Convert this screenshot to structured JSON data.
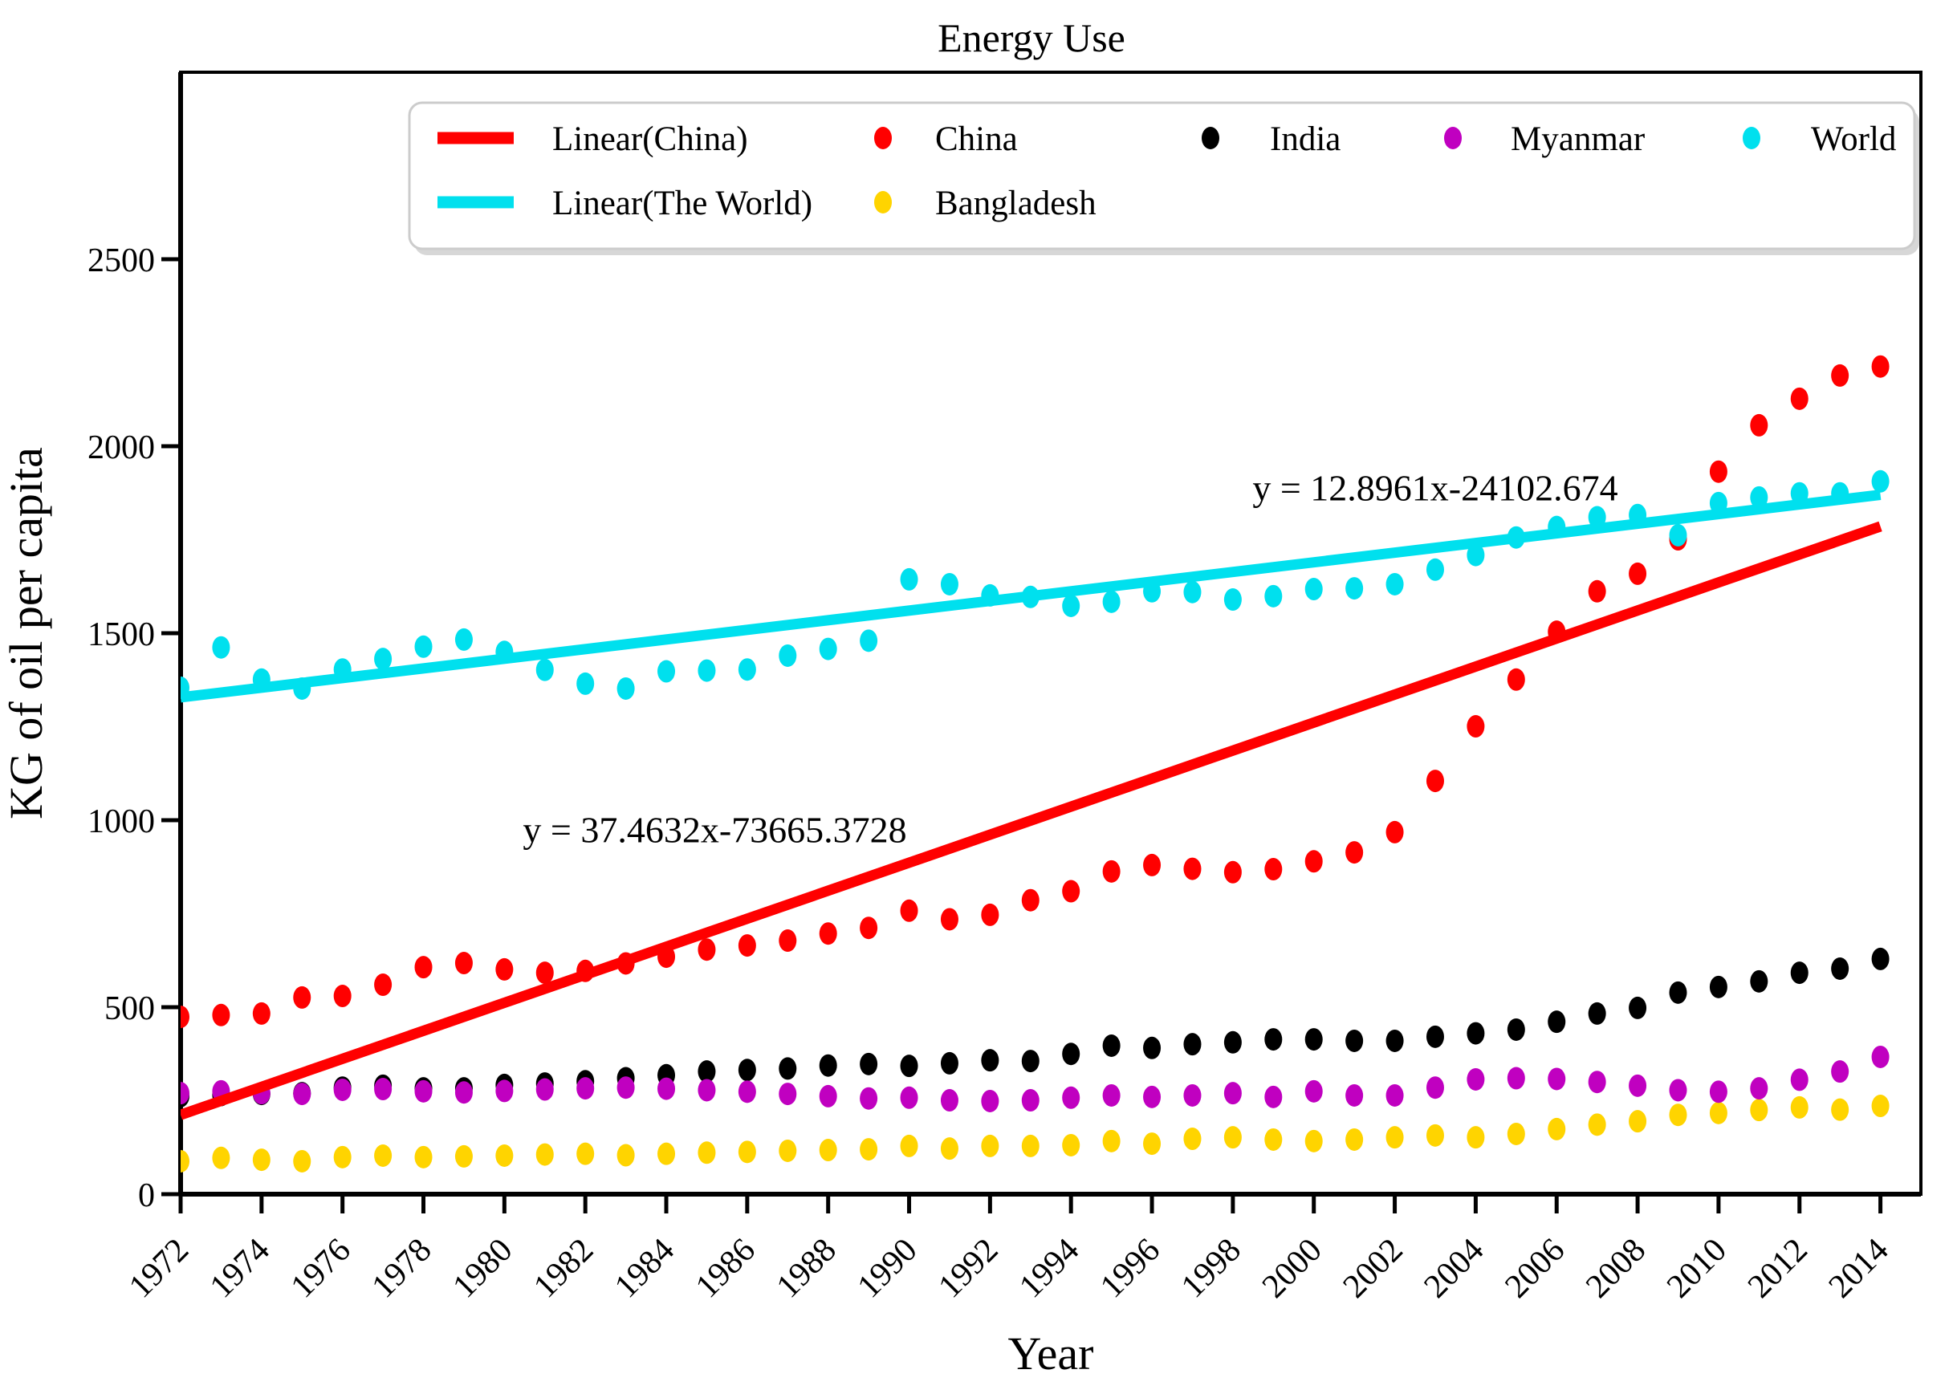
{
  "chart_data": {
    "type": "scatter",
    "title": "Energy Use",
    "xlabel": "Year",
    "ylabel": "KG of oil per capita",
    "xlim": [
      1972,
      2015
    ],
    "ylim": [
      0,
      3000
    ],
    "grid": false,
    "legend_position": "upper center",
    "xticks": [
      1972,
      1974,
      1976,
      1978,
      1980,
      1982,
      1984,
      1986,
      1988,
      1990,
      1992,
      1994,
      1996,
      1998,
      2000,
      2002,
      2004,
      2006,
      2008,
      2010,
      2012,
      2014
    ],
    "yticks": [
      0,
      500,
      1000,
      1500,
      2000,
      2500
    ],
    "years": [
      1972,
      1973,
      1974,
      1975,
      1976,
      1977,
      1978,
      1979,
      1980,
      1981,
      1982,
      1983,
      1984,
      1985,
      1986,
      1987,
      1988,
      1989,
      1990,
      1991,
      1992,
      1993,
      1994,
      1995,
      1996,
      1997,
      1998,
      1999,
      2000,
      2001,
      2002,
      2003,
      2004,
      2005,
      2006,
      2007,
      2008,
      2009,
      2010,
      2011,
      2012,
      2013,
      2014
    ],
    "series": [
      {
        "name": "China",
        "color": "#FF0000",
        "values": [
          474,
          479,
          483,
          526,
          530,
          560,
          607,
          618,
          601,
          592,
          597,
          617,
          635,
          654,
          665,
          678,
          697,
          712,
          758,
          735,
          747,
          786,
          810,
          863,
          880,
          870,
          861,
          869,
          890,
          914,
          968,
          1105,
          1251,
          1376,
          1504,
          1612,
          1659,
          1751,
          1932,
          2056,
          2127,
          2189,
          2213
        ]
      },
      {
        "name": "Bangladesh",
        "color": "#FFD400",
        "values": [
          88,
          97,
          92,
          88,
          99,
          103,
          99,
          101,
          103,
          106,
          108,
          104,
          108,
          111,
          113,
          116,
          118,
          120,
          129,
          122,
          129,
          129,
          131,
          142,
          135,
          148,
          152,
          146,
          142,
          146,
          152,
          157,
          152,
          161,
          174,
          186,
          195,
          212,
          217,
          225,
          232,
          226,
          236
        ]
      },
      {
        "name": "India",
        "color": "#000000",
        "values": [
          262,
          265,
          268,
          270,
          285,
          290,
          283,
          283,
          292,
          296,
          302,
          310,
          318,
          328,
          332,
          336,
          344,
          348,
          343,
          350,
          358,
          356,
          375,
          397,
          391,
          401,
          406,
          414,
          414,
          410,
          410,
          421,
          430,
          440,
          461,
          483,
          498,
          539,
          554,
          569,
          592,
          603,
          629
        ]
      },
      {
        "name": "Myanmar",
        "color": "#C000C0",
        "values": [
          270,
          275,
          270,
          268,
          279,
          281,
          275,
          272,
          276,
          280,
          283,
          285,
          282,
          278,
          274,
          268,
          262,
          256,
          258,
          251,
          249,
          251,
          258,
          264,
          260,
          264,
          270,
          260,
          275,
          264,
          264,
          285,
          307,
          310,
          308,
          300,
          290,
          278,
          274,
          283,
          306,
          328,
          367
        ]
      },
      {
        "name": "World",
        "color": "#00E0EE",
        "values": [
          1354,
          1462,
          1376,
          1352,
          1403,
          1431,
          1464,
          1483,
          1450,
          1402,
          1365,
          1352,
          1398,
          1400,
          1403,
          1440,
          1458,
          1480,
          1644,
          1631,
          1601,
          1597,
          1573,
          1584,
          1612,
          1610,
          1590,
          1599,
          1618,
          1620,
          1631,
          1670,
          1709,
          1756,
          1784,
          1810,
          1816,
          1762,
          1848,
          1863,
          1874,
          1874,
          1906
        ]
      }
    ],
    "trendlines": [
      {
        "name": "Linear(China)",
        "color": "#FF0000",
        "slope": 37.4632,
        "intercept": -73665.3728,
        "equation": "y = 37.4632x-73665.3728",
        "x_start": 1972,
        "x_end": 2014,
        "label_at": {
          "x": 1985.2,
          "y": 975
        }
      },
      {
        "name": "Linear(The World)",
        "color": "#00E0EE",
        "slope": 12.8961,
        "intercept": -24102.674,
        "equation": "y = 12.8961x-24102.674",
        "x_start": 1972,
        "x_end": 2014,
        "label_at": {
          "x": 2003.0,
          "y": 1890
        }
      }
    ],
    "legend": {
      "entries": [
        {
          "label": "Linear(China)",
          "type": "line",
          "color": "#FF0000",
          "row": 0,
          "col": 0
        },
        {
          "label": "Linear(The World)",
          "type": "line",
          "color": "#00E0EE",
          "row": 1,
          "col": 0
        },
        {
          "label": "China",
          "type": "dot",
          "color": "#FF0000",
          "row": 0,
          "col": 1
        },
        {
          "label": "Bangladesh",
          "type": "dot",
          "color": "#FFD400",
          "row": 1,
          "col": 1
        },
        {
          "label": "India",
          "type": "dot",
          "color": "#000000",
          "row": 0,
          "col": 2
        },
        {
          "label": "Myanmar",
          "type": "dot",
          "color": "#C000C0",
          "row": 0,
          "col": 3
        },
        {
          "label": "World",
          "type": "dot",
          "color": "#00E0EE",
          "row": 0,
          "col": 4
        }
      ]
    }
  }
}
